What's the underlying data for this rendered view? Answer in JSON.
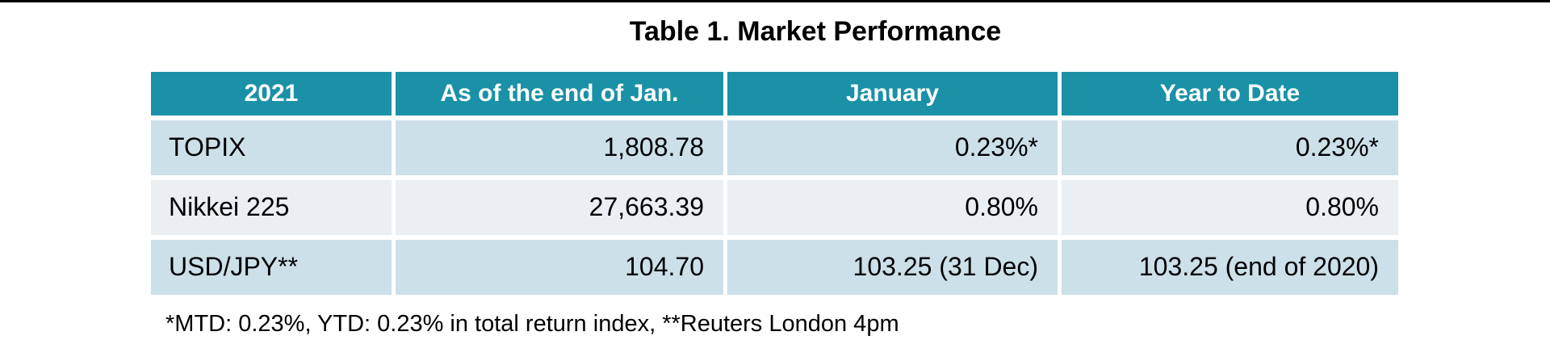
{
  "page": {
    "title": "Table 1. Market Performance",
    "footnote": "*MTD: 0.23%, YTD: 0.23% in total return index, **Reuters London 4pm"
  },
  "table": {
    "columns": [
      "2021",
      "As of the end of Jan.",
      "January",
      "Year to Date"
    ],
    "rows": [
      [
        "TOPIX",
        "1,808.78",
        "0.23%*",
        "0.23%*"
      ],
      [
        "Nikkei 225",
        "27,663.39",
        "0.80%",
        "0.80%"
      ],
      [
        "USD/JPY**",
        "104.70",
        "103.25 (31 Dec)",
        "103.25 (end of 2020)"
      ]
    ]
  },
  "colors": {
    "header_bg": "#1a91a7",
    "header_text": "#ffffff",
    "row_odd_bg": "#cce0e9",
    "row_even_bg": "#e9eff3",
    "body_text": "#000000",
    "top_rule": "#000000"
  },
  "chart_data": {
    "type": "table",
    "title": "Table 1. Market Performance",
    "columns": [
      "2021",
      "As of the end of Jan.",
      "January",
      "Year to Date"
    ],
    "rows": [
      {
        "name": "TOPIX",
        "as_of_end_of_jan": "1,808.78",
        "january": "0.23%*",
        "year_to_date": "0.23%*"
      },
      {
        "name": "Nikkei 225",
        "as_of_end_of_jan": "27,663.39",
        "january": "0.80%",
        "year_to_date": "0.80%"
      },
      {
        "name": "USD/JPY**",
        "as_of_end_of_jan": "104.70",
        "january": "103.25 (31 Dec)",
        "year_to_date": "103.25 (end of 2020)"
      }
    ],
    "footnote": "*MTD: 0.23%, YTD: 0.23% in total return index, **Reuters London 4pm"
  }
}
